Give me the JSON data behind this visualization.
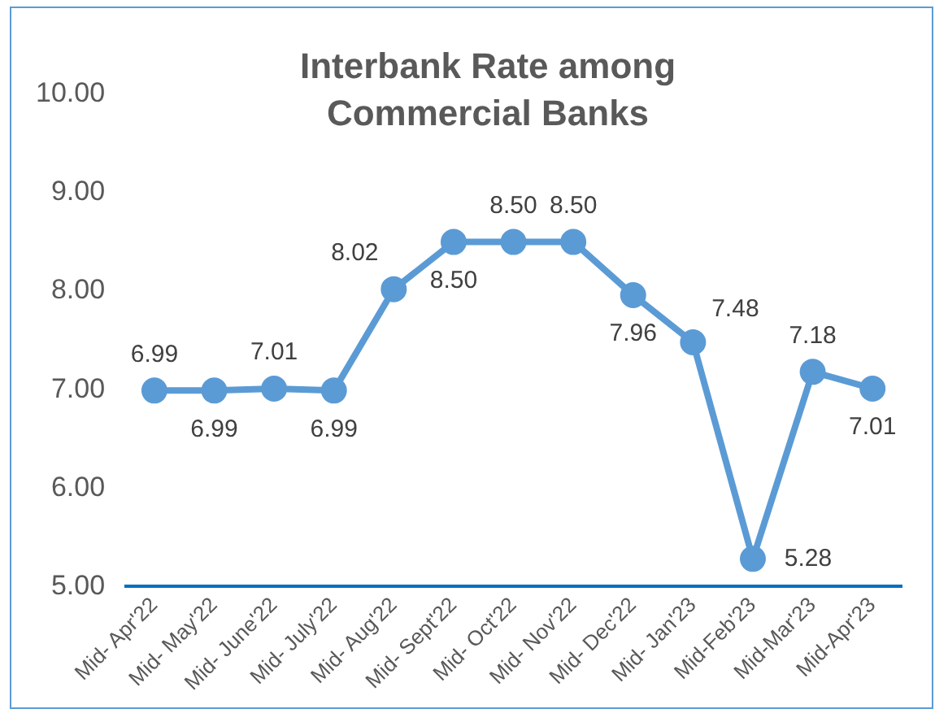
{
  "chart_data": {
    "type": "line",
    "title": "Interbank Rate among Commercial Banks",
    "categories": [
      "Mid- Apr'22",
      "Mid- May'22",
      "Mid- June'22",
      "Mid- July'22",
      "Mid- Aug'22",
      "Mid- Sept'22",
      "Mid- Oct'22",
      "Mid- Nov'22",
      "Mid- Dec'22",
      "Mid- Jan'23",
      "Mid-Feb'23",
      "Mid-Mar'23",
      "Mid-Apr'23"
    ],
    "series": [
      {
        "color": "#5b9bd5",
        "values": [
          6.99,
          6.99,
          7.01,
          6.99,
          8.02,
          8.5,
          8.5,
          8.5,
          7.96,
          7.48,
          5.28,
          7.18,
          7.01
        ],
        "value_labels": [
          "6.99",
          "6.99",
          "7.01",
          "6.99",
          "8.02",
          "8.50",
          "8.50",
          "8.50",
          "7.96",
          "7.48",
          "5.28",
          "7.18",
          "7.01"
        ]
      }
    ],
    "ylim": [
      5,
      10
    ],
    "yticks": [
      {
        "value": 5,
        "label": "5.00"
      },
      {
        "value": 6,
        "label": "6.00"
      },
      {
        "value": 7,
        "label": "7.00"
      },
      {
        "value": 8,
        "label": "8.00"
      },
      {
        "value": 9,
        "label": "9.00"
      },
      {
        "value": 10,
        "label": "10.00"
      }
    ],
    "grid": false,
    "legend": false,
    "marker": "circle",
    "line_style": "solid"
  }
}
